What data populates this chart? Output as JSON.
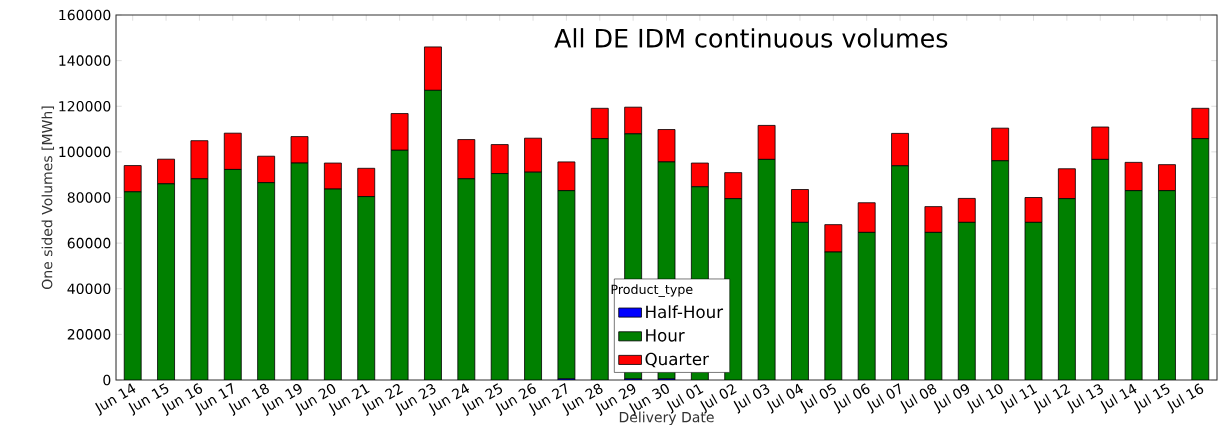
{
  "chart_data": {
    "type": "bar",
    "stacked": true,
    "title": "All DE IDM continuous volumes",
    "xlabel": "Delivery Date",
    "ylabel": "One sided Volumes [MWh]",
    "legend_title": "Product_type",
    "legend": "bottom",
    "categories": [
      "Jun 14",
      "Jun 15",
      "Jun 16",
      "Jun 17",
      "Jun 18",
      "Jun 19",
      "Jun 20",
      "Jun 21",
      "Jun 22",
      "Jun 23",
      "Jun 24",
      "Jun 25",
      "Jun 26",
      "Jun 27",
      "Jun 28",
      "Jun 29",
      "Jun 30",
      "Jul 01",
      "Jul 02",
      "Jul 03",
      "Jul 04",
      "Jul 05",
      "Jul 06",
      "Jul 07",
      "Jul 08",
      "Jul 09",
      "Jul 10",
      "Jul 11",
      "Jul 12",
      "Jul 13",
      "Jul 14",
      "Jul 15",
      "Jul 16"
    ],
    "series": [
      {
        "name": "Half-Hour",
        "color": "#0000ff",
        "values": [
          0,
          0,
          0,
          0,
          0,
          0,
          0,
          0,
          0,
          0,
          0,
          0,
          0,
          500,
          0,
          500,
          500,
          0,
          0,
          0,
          0,
          0,
          0,
          0,
          0,
          0,
          0,
          0,
          0,
          0,
          0,
          0,
          0
        ]
      },
      {
        "name": "Hour",
        "color": "#008000",
        "values": [
          82500,
          86000,
          88200,
          92300,
          86500,
          95100,
          83700,
          80400,
          100700,
          127000,
          88200,
          90500,
          91100,
          82500,
          105800,
          107400,
          95100,
          84700,
          79500,
          96700,
          69100,
          56100,
          64700,
          93900,
          64700,
          69100,
          96100,
          69100,
          79500,
          96700,
          83000,
          83000,
          105800
        ]
      },
      {
        "name": "Quarter",
        "color": "#ff0000",
        "values": [
          11500,
          10800,
          16700,
          15900,
          11600,
          11600,
          11400,
          12400,
          16100,
          19000,
          17200,
          12700,
          14900,
          12600,
          13300,
          11700,
          14200,
          10400,
          11400,
          14900,
          14400,
          12000,
          13000,
          14200,
          11300,
          10500,
          14300,
          10900,
          13100,
          14200,
          12400,
          11400,
          13300
        ]
      }
    ],
    "ylim": [
      0,
      160000
    ],
    "yticks": [
      0,
      20000,
      40000,
      60000,
      80000,
      100000,
      120000,
      140000,
      160000
    ]
  }
}
